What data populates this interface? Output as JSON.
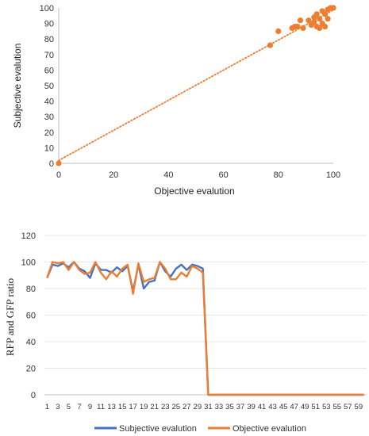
{
  "chart_data": [
    {
      "type": "scatter",
      "xlabel": "Objective evalution",
      "ylabel": "Subjective evalution",
      "xlim": [
        0,
        100
      ],
      "ylim": [
        0,
        100
      ],
      "xticks": [
        0,
        20,
        40,
        60,
        80,
        100
      ],
      "yticks": [
        0,
        10,
        20,
        30,
        40,
        50,
        60,
        70,
        80,
        90,
        100
      ],
      "grid": false,
      "trendline": "linear, dotted",
      "marker_color": "#ED7D31",
      "points": [
        {
          "x": 0,
          "y": 0
        },
        {
          "x": 77,
          "y": 76
        },
        {
          "x": 80,
          "y": 85
        },
        {
          "x": 85,
          "y": 87
        },
        {
          "x": 86,
          "y": 88
        },
        {
          "x": 87,
          "y": 88
        },
        {
          "x": 88,
          "y": 92
        },
        {
          "x": 89,
          "y": 87
        },
        {
          "x": 91,
          "y": 92
        },
        {
          "x": 92,
          "y": 89
        },
        {
          "x": 93,
          "y": 94
        },
        {
          "x": 93,
          "y": 91
        },
        {
          "x": 94,
          "y": 96
        },
        {
          "x": 94,
          "y": 88
        },
        {
          "x": 95,
          "y": 93
        },
        {
          "x": 95,
          "y": 87
        },
        {
          "x": 96,
          "y": 90
        },
        {
          "x": 96,
          "y": 98
        },
        {
          "x": 97,
          "y": 96
        },
        {
          "x": 97,
          "y": 88
        },
        {
          "x": 98,
          "y": 99
        },
        {
          "x": 98,
          "y": 93
        },
        {
          "x": 99,
          "y": 100
        },
        {
          "x": 100,
          "y": 100
        },
        {
          "x": 100,
          "y": 100
        }
      ]
    },
    {
      "type": "line",
      "ylabel": "RFP and GFP ratio",
      "ylim": [
        0,
        120
      ],
      "yticks": [
        0,
        20,
        40,
        60,
        80,
        100,
        120
      ],
      "x": [
        1,
        2,
        3,
        4,
        5,
        6,
        7,
        8,
        9,
        10,
        11,
        12,
        13,
        14,
        15,
        16,
        17,
        18,
        19,
        20,
        21,
        22,
        23,
        24,
        25,
        26,
        27,
        28,
        29,
        30,
        31,
        32,
        33,
        34,
        35,
        36,
        37,
        38,
        39,
        40,
        41,
        42,
        43,
        44,
        45,
        46,
        47,
        48,
        49,
        50,
        51,
        52,
        53,
        54,
        55,
        56,
        57,
        58,
        59,
        60
      ],
      "xtick_labels": [
        "1",
        "3",
        "5",
        "7",
        "9",
        "11",
        "13",
        "15",
        "17",
        "19",
        "21",
        "23",
        "25",
        "27",
        "29",
        "31",
        "33",
        "35",
        "37",
        "39",
        "41",
        "43",
        "45",
        "47",
        "49",
        "51",
        "53",
        "55",
        "57",
        "59"
      ],
      "legend_position": "bottom",
      "series": [
        {
          "name": "Subjective evalution",
          "color": "#4472C4",
          "values": [
            88,
            98,
            97,
            99,
            96,
            100,
            95,
            93,
            88,
            99,
            94,
            94,
            92,
            96,
            93,
            97,
            78,
            98,
            80,
            85,
            86,
            100,
            93,
            89,
            95,
            98,
            94,
            98,
            97,
            95,
            0,
            0,
            0,
            0,
            0,
            0,
            0,
            0,
            0,
            0,
            0,
            0,
            0,
            0,
            0,
            0,
            0,
            0,
            0,
            0,
            0,
            0,
            0,
            0,
            0,
            0,
            0,
            0,
            0,
            0
          ]
        },
        {
          "name": "Objective evalution",
          "color": "#ED7D31",
          "values": [
            88,
            100,
            99,
            100,
            94,
            100,
            94,
            91,
            92,
            100,
            92,
            87,
            93,
            89,
            95,
            98,
            76,
            99,
            85,
            87,
            88,
            100,
            95,
            87,
            87,
            92,
            89,
            97,
            95,
            92,
            0,
            0,
            0,
            0,
            0,
            0,
            0,
            0,
            0,
            0,
            0,
            0,
            0,
            0,
            0,
            0,
            0,
            0,
            0,
            0,
            0,
            0,
            0,
            0,
            0,
            0,
            0,
            0,
            0,
            0
          ]
        }
      ]
    }
  ]
}
